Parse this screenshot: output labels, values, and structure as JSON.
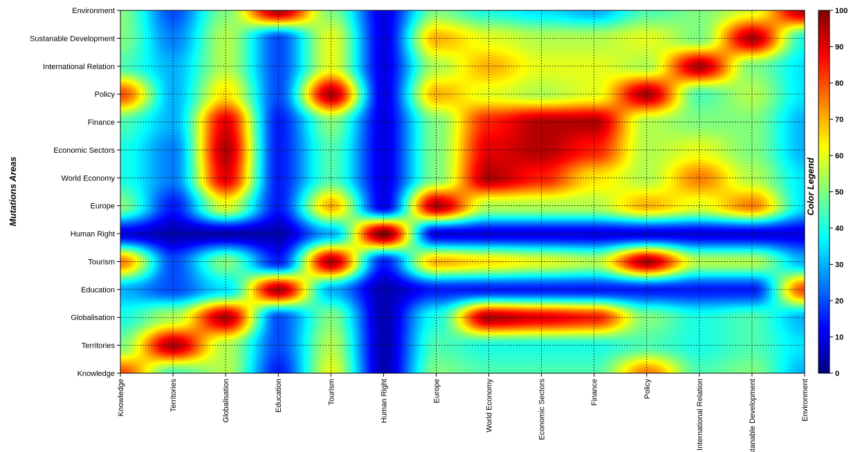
{
  "chart_data": {
    "type": "heatmap",
    "title": "",
    "xlabel": "",
    "ylabel": "Mutations Areas",
    "colorbar_label": "Color Legend",
    "colorbar_ticks": [
      0,
      10,
      20,
      30,
      40,
      50,
      60,
      70,
      80,
      90,
      100
    ],
    "value_range": [
      0,
      100
    ],
    "colormap": "jet",
    "grid": true,
    "x_categories": [
      "Knowledge",
      "Territories",
      "Globalisation",
      "Education",
      "Tourism",
      "Human Right",
      "Europe",
      "World Economy",
      "Economic Sectors",
      "Finance",
      "Policy",
      "International Relation",
      "Sustanable Development",
      "Environment"
    ],
    "y_categories": [
      "Knowledge",
      "Territories",
      "Globalisation",
      "Education",
      "Tourism",
      "Human Right",
      "Europe",
      "World Economy",
      "Economic Sectors",
      "Finance",
      "Policy",
      "International Relation",
      "Sustanable Development",
      "Environment"
    ],
    "values": [
      [
        80,
        45,
        55,
        15,
        60,
        5,
        50,
        45,
        45,
        45,
        75,
        45,
        50,
        30
      ],
      [
        50,
        95,
        55,
        20,
        55,
        5,
        45,
        40,
        40,
        40,
        45,
        40,
        45,
        35
      ],
      [
        40,
        55,
        95,
        20,
        50,
        5,
        40,
        95,
        90,
        85,
        50,
        40,
        45,
        30
      ],
      [
        30,
        20,
        35,
        95,
        30,
        5,
        15,
        15,
        15,
        15,
        15,
        15,
        15,
        80
      ],
      [
        75,
        20,
        50,
        15,
        95,
        15,
        70,
        65,
        60,
        55,
        95,
        55,
        55,
        30
      ],
      [
        10,
        5,
        5,
        5,
        30,
        100,
        10,
        10,
        10,
        10,
        10,
        10,
        10,
        10
      ],
      [
        50,
        15,
        60,
        15,
        70,
        10,
        95,
        55,
        55,
        55,
        70,
        60,
        75,
        35
      ],
      [
        40,
        25,
        90,
        15,
        45,
        10,
        50,
        95,
        85,
        65,
        55,
        75,
        55,
        35
      ],
      [
        40,
        25,
        95,
        15,
        45,
        10,
        50,
        90,
        95,
        85,
        55,
        60,
        50,
        30
      ],
      [
        45,
        30,
        90,
        15,
        50,
        10,
        50,
        85,
        95,
        95,
        55,
        50,
        50,
        30
      ],
      [
        80,
        30,
        65,
        20,
        95,
        10,
        70,
        60,
        55,
        60,
        95,
        45,
        55,
        35
      ],
      [
        45,
        30,
        55,
        20,
        60,
        10,
        55,
        70,
        60,
        60,
        55,
        95,
        50,
        35
      ],
      [
        50,
        25,
        55,
        20,
        60,
        10,
        70,
        60,
        55,
        55,
        60,
        50,
        95,
        40
      ],
      [
        50,
        20,
        50,
        95,
        50,
        10,
        50,
        40,
        35,
        30,
        45,
        50,
        60,
        95
      ]
    ]
  }
}
